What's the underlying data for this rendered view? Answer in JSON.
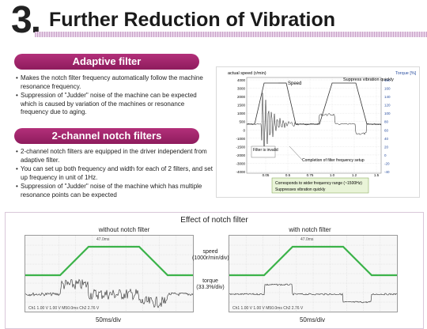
{
  "header": {
    "number": "3",
    "dot": ".",
    "title": "Further Reduction of Vibration"
  },
  "adaptive": {
    "heading": "Adaptive filter",
    "bullets": [
      "Makes the notch filter frequency automatically follow the machine resonance frequency.",
      "Suppression of \"Judder\" noise of the machine can be expected which is caused by variation of the machines or resonance frequency due to aging."
    ]
  },
  "notch2": {
    "heading": "2-channel notch filters",
    "bullets": [
      "2-channel notch filters are equipped in the driver independent from adaptive filter.",
      "You can set up both frequency and width for each of 2 filters, and set up frequency in unit of 1Hz.",
      "Suppression of \"Judder\" noise of the machine which has multiple resonance points can be expected"
    ]
  },
  "chart": {
    "ylabel_left": "actual speed (r/min)",
    "ylabel_right": "Torque [%]",
    "yticks_left": [
      "4000",
      "3000",
      "2000",
      "1500",
      "1000",
      "500",
      "0",
      "-1000",
      "-1500",
      "-2000",
      "-3000",
      "-4000"
    ],
    "yticks_right": [
      "180",
      "160",
      "140",
      "120",
      "100",
      "80",
      "60",
      "40",
      "20",
      "0",
      "-20",
      "-40"
    ],
    "xticks": [
      "0.05",
      "0.5",
      "0.75",
      "1.0",
      "1.2",
      "1.5"
    ],
    "annotations": {
      "speed": "Speed",
      "suppress": "Suppress vibration quickly",
      "filter_invalid": "Filter is invalid",
      "completion": "Completion of filter frequency setup"
    },
    "legend_box": [
      "Corresponds to wider frequency range (~1500Hz)",
      "Suppresses vibration quickly"
    ]
  },
  "effect": {
    "title": "Effect of notch filter",
    "left_label": "without notch filter",
    "right_label": "with notch filter",
    "speed_label": "speed (1000r/min/div)",
    "torque_label": "torque (33.3%/div)",
    "time_left": "50ms/div",
    "time_right": "50ms/div",
    "left_top_small": "47.0ms",
    "right_top_small": "47.0ms",
    "left_bottom_readout": "Ch1    1.00 V        1.00 V    M50.0ms  Ch2    2.76 V",
    "right_bottom_readout": "Ch1    1.00 V        1.00 V    M50.0ms  Ch2    2.76 V"
  },
  "colors": {
    "accent": "#9c2268",
    "speed_green": "#3cb34a",
    "trace": "#2a2a2a"
  }
}
